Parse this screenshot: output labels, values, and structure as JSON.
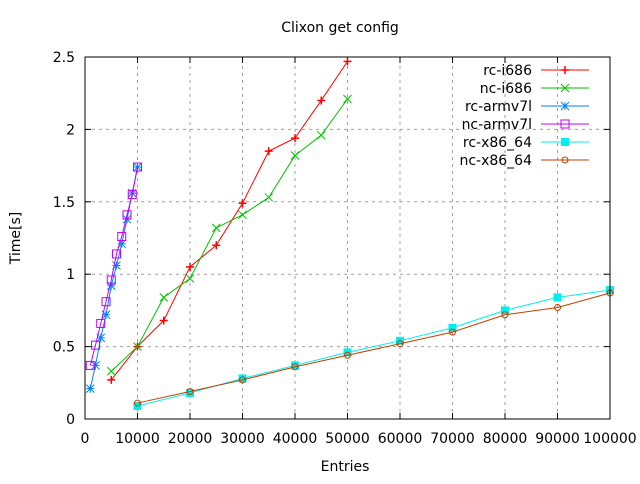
{
  "chart_data": {
    "type": "line",
    "title": "Clixon get config",
    "xlabel": "Entries",
    "ylabel": "Time[s]",
    "xlim": [
      0,
      100000
    ],
    "ylim": [
      0,
      2.5
    ],
    "xticks": [
      0,
      10000,
      20000,
      30000,
      40000,
      50000,
      60000,
      70000,
      80000,
      90000,
      100000
    ],
    "yticks": [
      0,
      0.5,
      1,
      1.5,
      2,
      2.5
    ],
    "xtick_labels": [
      "0",
      "10000",
      "20000",
      "30000",
      "40000",
      "50000",
      "60000",
      "70000",
      "80000",
      "90000",
      "100000"
    ],
    "ytick_labels": [
      "0",
      "0.5",
      "1",
      "1.5",
      "2",
      "2.5"
    ],
    "grid": true,
    "legend_position": "top-right",
    "series": [
      {
        "name": "rc-i686",
        "color": "#ff0000",
        "marker": "plus",
        "x": [
          5000,
          10000,
          15000,
          20000,
          25000,
          30000,
          35000,
          40000,
          45000,
          50000
        ],
        "y": [
          0.27,
          0.5,
          0.68,
          1.05,
          1.2,
          1.49,
          1.85,
          1.94,
          2.2,
          2.47
        ]
      },
      {
        "name": "nc-i686",
        "color": "#00c000",
        "marker": "cross",
        "x": [
          5000,
          10000,
          15000,
          20000,
          25000,
          30000,
          35000,
          40000,
          45000,
          50000
        ],
        "y": [
          0.33,
          0.5,
          0.84,
          0.97,
          1.32,
          1.41,
          1.53,
          1.82,
          1.96,
          2.21
        ]
      },
      {
        "name": "rc-armv7l",
        "color": "#0080ff",
        "marker": "star",
        "x": [
          1000,
          2000,
          3000,
          4000,
          5000,
          6000,
          7000,
          8000,
          9000,
          10000
        ],
        "y": [
          0.21,
          0.37,
          0.56,
          0.72,
          0.92,
          1.06,
          1.21,
          1.38,
          1.56,
          1.74
        ]
      },
      {
        "name": "nc-armv7l",
        "color": "#c000ff",
        "marker": "box",
        "x": [
          1000,
          2000,
          3000,
          4000,
          5000,
          6000,
          7000,
          8000,
          9000,
          10000
        ],
        "y": [
          0.37,
          0.51,
          0.66,
          0.81,
          0.96,
          1.14,
          1.26,
          1.41,
          1.55,
          1.74
        ]
      },
      {
        "name": "rc-x86_64",
        "color": "#00eeee",
        "marker": "filled-box",
        "x": [
          10000,
          20000,
          30000,
          40000,
          50000,
          60000,
          70000,
          80000,
          90000,
          100000
        ],
        "y": [
          0.09,
          0.18,
          0.28,
          0.37,
          0.46,
          0.54,
          0.63,
          0.75,
          0.84,
          0.89
        ]
      },
      {
        "name": "nc-x86_64",
        "color": "#c04000",
        "marker": "circle",
        "x": [
          10000,
          20000,
          30000,
          40000,
          50000,
          60000,
          70000,
          80000,
          90000,
          100000
        ],
        "y": [
          0.11,
          0.19,
          0.27,
          0.36,
          0.44,
          0.52,
          0.6,
          0.72,
          0.77,
          0.87
        ]
      }
    ]
  }
}
